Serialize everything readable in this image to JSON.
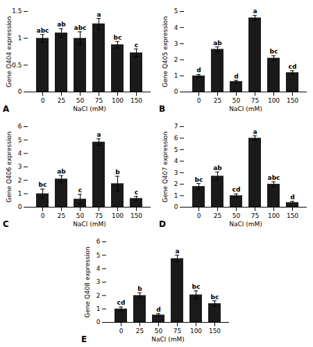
{
  "chart_data": [
    {
      "type": "bar",
      "title": "A",
      "xlabel": "NaCl (mM)",
      "ylabel": "Gene Q404 expression",
      "categories": [
        "0",
        "25",
        "50",
        "75",
        "100",
        "150"
      ],
      "values": [
        1.0,
        1.1,
        1.0,
        1.27,
        0.88,
        0.73
      ],
      "errors": [
        0.07,
        0.08,
        0.12,
        0.1,
        0.06,
        0.07
      ],
      "annotations": [
        "abc",
        "ab",
        "abc",
        "a",
        "bc",
        "c"
      ],
      "ylim": [
        0,
        1.5
      ],
      "yticks": [
        0,
        0.5,
        1,
        1.5
      ],
      "color": "#1a1a1a"
    },
    {
      "type": "bar",
      "title": "B",
      "xlabel": "NaCl (mM)",
      "ylabel": "Gene Q405 expression",
      "categories": [
        "0",
        "25",
        "50",
        "75",
        "100",
        "150"
      ],
      "values": [
        1.0,
        2.65,
        0.65,
        4.6,
        2.1,
        1.2
      ],
      "errors": [
        0.08,
        0.15,
        0.07,
        0.15,
        0.15,
        0.12
      ],
      "annotations": [
        "d",
        "ab",
        "d",
        "a",
        "bc",
        "cd"
      ],
      "ylim": [
        0,
        5
      ],
      "yticks": [
        0,
        1,
        2,
        3,
        4,
        5
      ],
      "color": "#1a1a1a"
    },
    {
      "type": "bar",
      "title": "C",
      "xlabel": "NaCl (mM)",
      "ylabel": "Gene Q406 expression",
      "categories": [
        "0",
        "25",
        "50",
        "75",
        "100",
        "150"
      ],
      "values": [
        1.0,
        2.1,
        0.6,
        4.85,
        1.75,
        0.65
      ],
      "errors": [
        0.35,
        0.25,
        0.35,
        0.25,
        0.55,
        0.15
      ],
      "annotations": [
        "bc",
        "ab",
        "c",
        "a",
        "b",
        "c"
      ],
      "ylim": [
        0,
        6
      ],
      "yticks": [
        0,
        1,
        2,
        3,
        4,
        5,
        6
      ],
      "color": "#1a1a1a"
    },
    {
      "type": "bar",
      "title": "D",
      "xlabel": "NaCl (mM)",
      "ylabel": "Gene Q407 expression",
      "categories": [
        "0",
        "25",
        "50",
        "75",
        "100",
        "150"
      ],
      "values": [
        1.8,
        2.7,
        1.0,
        6.0,
        2.0,
        0.4
      ],
      "errors": [
        0.25,
        0.35,
        0.15,
        0.2,
        0.2,
        0.1
      ],
      "annotations": [
        "bc",
        "ab",
        "cd",
        "a",
        "abc",
        "d"
      ],
      "ylim": [
        0,
        7
      ],
      "yticks": [
        0,
        1,
        2,
        3,
        4,
        5,
        6,
        7
      ],
      "color": "#1a1a1a"
    },
    {
      "type": "bar",
      "title": "E",
      "xlabel": "NaCl (mM)",
      "ylabel": "Gene Q408 expression",
      "categories": [
        "0",
        "25",
        "50",
        "75",
        "100",
        "150"
      ],
      "values": [
        1.0,
        2.0,
        0.55,
        4.75,
        2.05,
        1.4
      ],
      "errors": [
        0.15,
        0.2,
        0.1,
        0.25,
        0.3,
        0.2
      ],
      "annotations": [
        "cd",
        "b",
        "d",
        "a",
        "bc",
        "bc"
      ],
      "ylim": [
        0,
        6
      ],
      "yticks": [
        0,
        1,
        2,
        3,
        4,
        5,
        6
      ],
      "color": "#1a1a1a"
    }
  ]
}
